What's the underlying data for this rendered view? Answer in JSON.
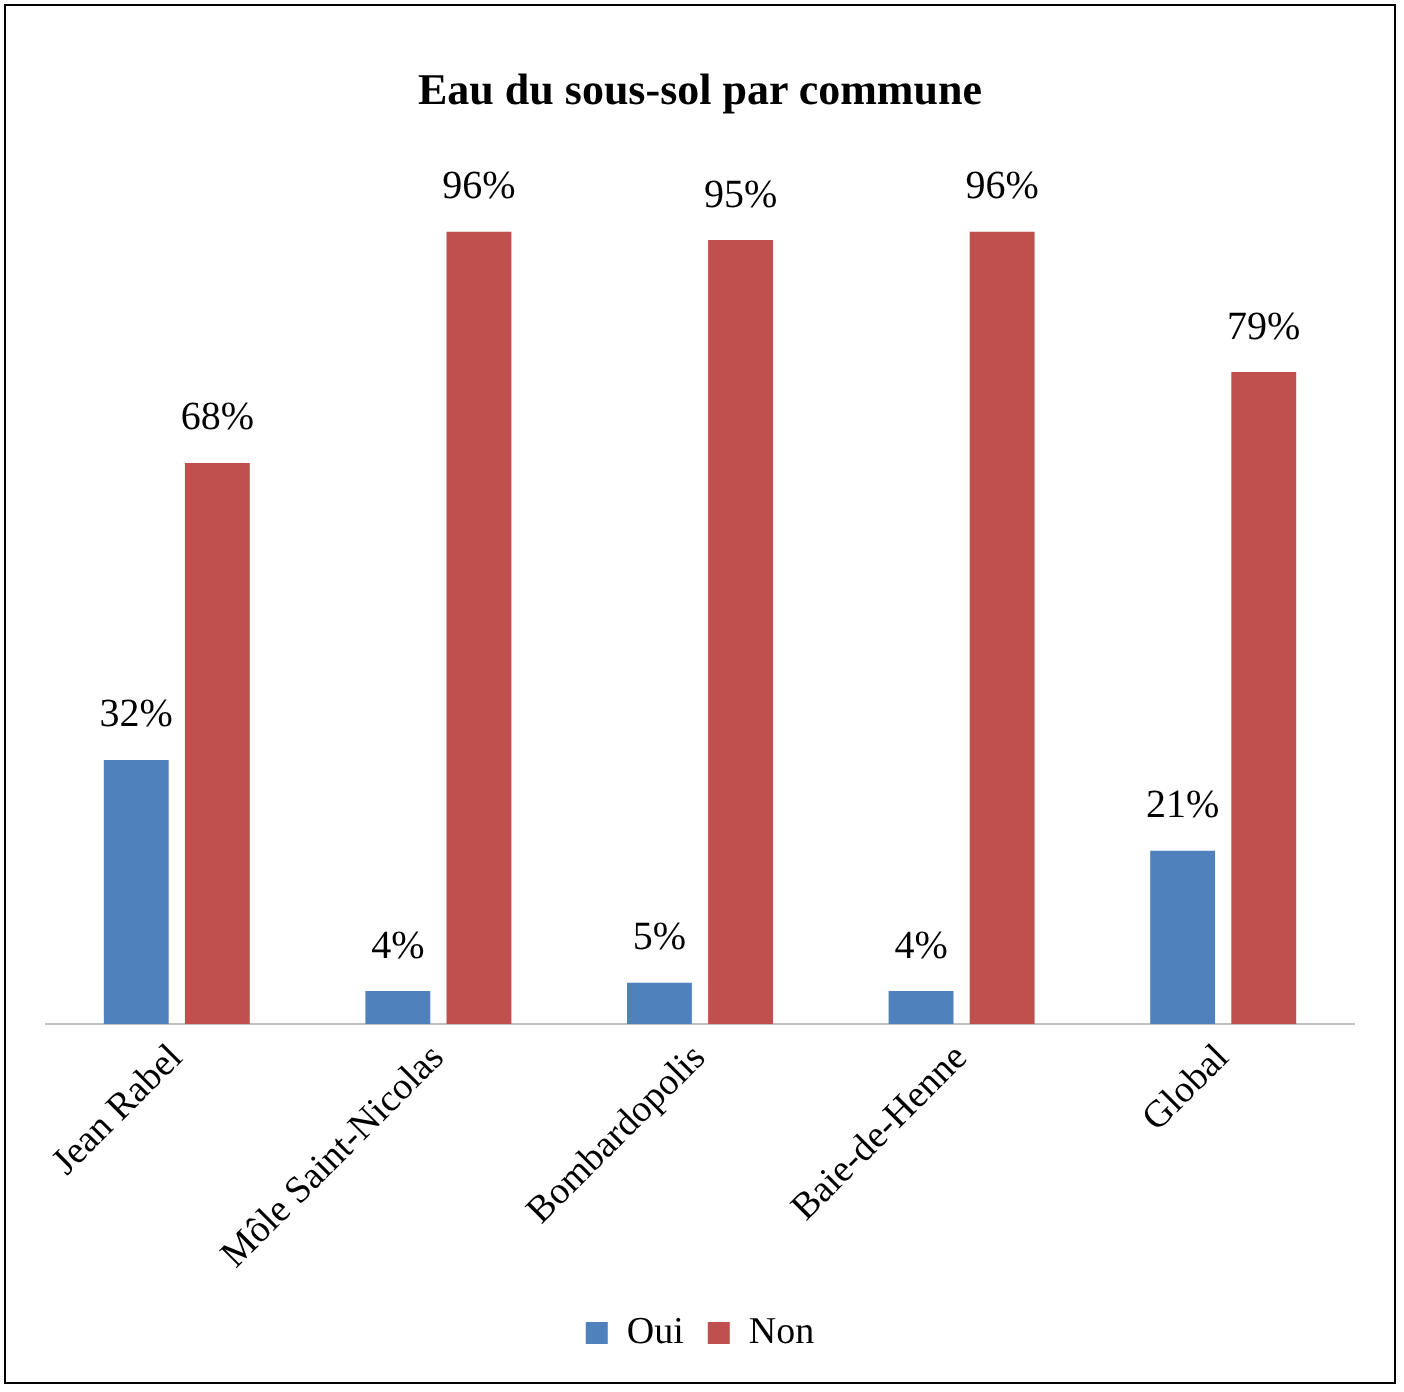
{
  "chart_data": {
    "type": "bar",
    "title": "Eau du sous-sol par commune",
    "categories": [
      "Jean Rabel",
      "Môle Saint-Nicolas",
      "Bombardopolis",
      "Baie-de-Henne",
      "Global"
    ],
    "series": [
      {
        "name": "Oui",
        "color": "#4f81bd",
        "values": [
          32,
          4,
          5,
          4,
          21
        ],
        "value_labels": [
          "32%",
          "4%",
          "5%",
          "4%",
          "21%"
        ]
      },
      {
        "name": "Non",
        "color": "#c0504d",
        "values": [
          68,
          96,
          95,
          96,
          79
        ],
        "value_labels": [
          "68%",
          "96%",
          "95%",
          "96%",
          "79%"
        ]
      }
    ],
    "grid": false,
    "legend": "bottom",
    "tick_labels": "x"
  }
}
